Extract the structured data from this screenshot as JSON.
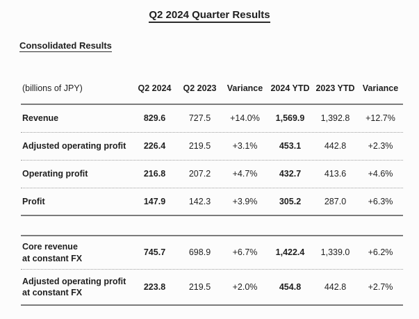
{
  "header": {
    "title": "Q2 2024 Quarter Results",
    "section_title": "Consolidated Results"
  },
  "table": {
    "unit_label": "(billions of JPY)",
    "columns": [
      "Q2 2024",
      "Q2 2023",
      "Variance",
      "2024 YTD",
      "2023 YTD",
      "Variance"
    ],
    "rows": [
      {
        "label": "Revenue",
        "values": [
          "829.6",
          "727.5",
          "+14.0%",
          "1,569.9",
          "1,392.8",
          "+12.7%"
        ]
      },
      {
        "label": "Adjusted operating profit",
        "values": [
          "226.4",
          "219.5",
          "+3.1%",
          "453.1",
          "442.8",
          "+2.3%"
        ]
      },
      {
        "label": "Operating profit",
        "values": [
          "216.8",
          "207.2",
          "+4.7%",
          "432.7",
          "413.6",
          "+4.6%"
        ]
      },
      {
        "label": "Profit",
        "values": [
          "147.9",
          "142.3",
          "+3.9%",
          "305.2",
          "287.0",
          "+6.3%"
        ]
      }
    ],
    "constant_fx_rows": [
      {
        "label": "Core revenue",
        "label2": "at constant FX",
        "values": [
          "745.7",
          "698.9",
          "+6.7%",
          "1,422.4",
          "1,339.0",
          "+6.2%"
        ]
      },
      {
        "label": "Adjusted operating profit",
        "label2": "at constant FX",
        "values": [
          "223.8",
          "219.5",
          "+2.0%",
          "454.8",
          "442.8",
          "+2.7%"
        ]
      }
    ]
  },
  "colors": {
    "background": "#fcfcfc",
    "text": "#1f1f1f",
    "solid_rule": "#7b7b7b",
    "dotted_rule": "#9c9c9c",
    "underline": "#2b2b2b"
  }
}
